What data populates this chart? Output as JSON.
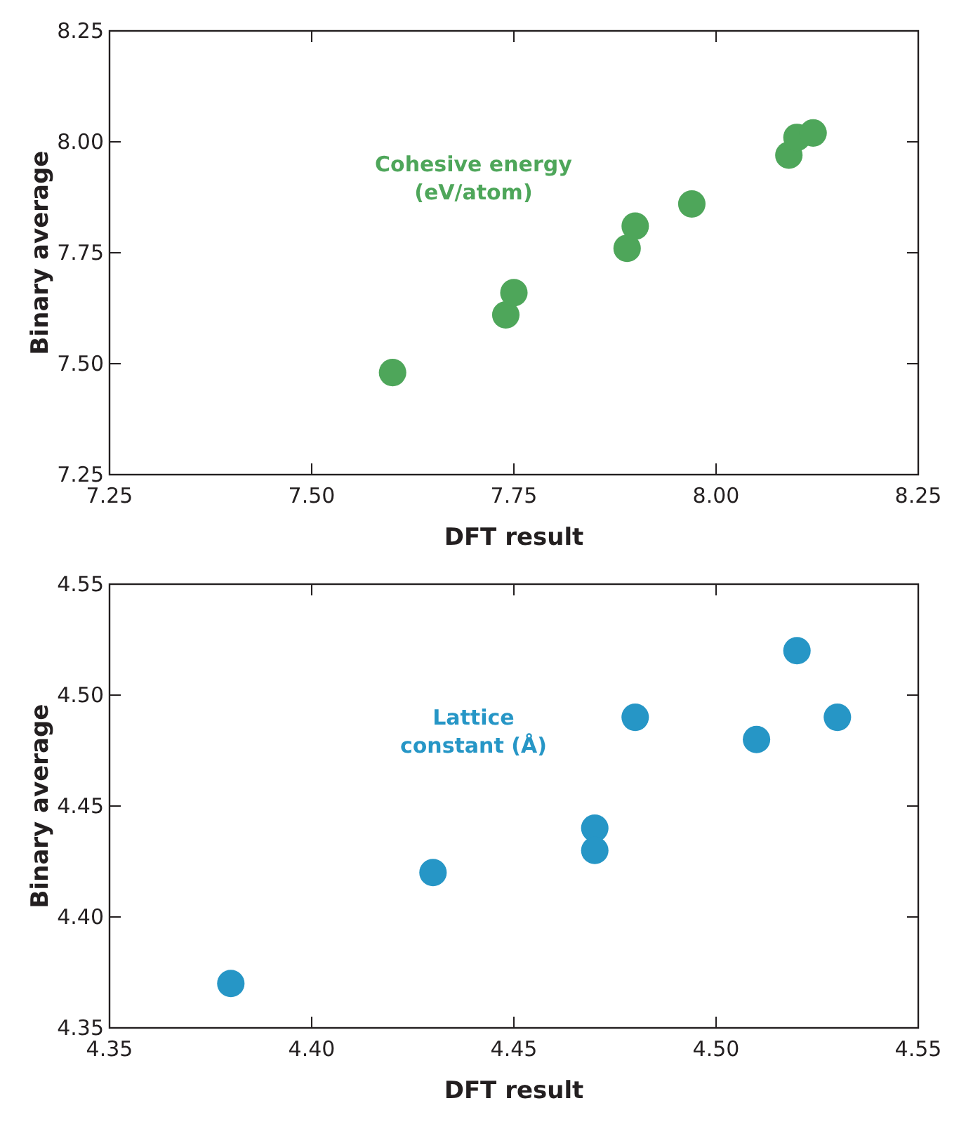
{
  "chart_data": [
    {
      "type": "scatter",
      "xlabel": "DFT result",
      "ylabel": "Binary average",
      "marker": "circle",
      "grid": false,
      "legend": false,
      "xlim": [
        7.25,
        8.25
      ],
      "ylim": [
        7.25,
        8.25
      ],
      "xticks": [
        {
          "value": 7.25,
          "label": "7.25"
        },
        {
          "value": 7.5,
          "label": "7.50"
        },
        {
          "value": 7.75,
          "label": "7.75"
        },
        {
          "value": 8,
          "label": "8.00"
        },
        {
          "value": 8.25,
          "label": "8.25"
        }
      ],
      "yticks": [
        {
          "value": 7.25,
          "label": "7.25"
        },
        {
          "value": 7.5,
          "label": "7.50"
        },
        {
          "value": 7.75,
          "label": "7.75"
        },
        {
          "value": 8,
          "label": "8.00"
        },
        {
          "value": 8.25,
          "label": "8.25"
        }
      ],
      "series": [
        {
          "name": "Cohesive energy (eV/atom)",
          "color": "#4ea65a",
          "x": [
            7.6,
            7.74,
            7.75,
            7.89,
            7.9,
            7.97,
            8.09,
            8.1,
            8.12
          ],
          "values": [
            7.48,
            7.61,
            7.66,
            7.76,
            7.81,
            7.86,
            7.97,
            8.01,
            8.02
          ]
        }
      ]
    },
    {
      "type": "scatter",
      "xlabel": "DFT result",
      "ylabel": "Binary average",
      "marker": "circle",
      "grid": false,
      "legend": false,
      "xlim": [
        4.35,
        4.55
      ],
      "ylim": [
        4.35,
        4.55
      ],
      "xticks": [
        {
          "value": 4.35,
          "label": "4.35"
        },
        {
          "value": 4.4,
          "label": "4.40"
        },
        {
          "value": 4.45,
          "label": "4.45"
        },
        {
          "value": 4.5,
          "label": "4.50"
        },
        {
          "value": 4.55,
          "label": "4.55"
        }
      ],
      "yticks": [
        {
          "value": 4.35,
          "label": "4.35"
        },
        {
          "value": 4.4,
          "label": "4.40"
        },
        {
          "value": 4.45,
          "label": "4.45"
        },
        {
          "value": 4.5,
          "label": "4.50"
        },
        {
          "value": 4.55,
          "label": "4.55"
        }
      ],
      "series": [
        {
          "name": "Lattice constant (Å)",
          "color": "#2696c6",
          "x": [
            4.38,
            4.43,
            4.47,
            4.47,
            4.48,
            4.51,
            4.52,
            4.53
          ],
          "values": [
            4.37,
            4.42,
            4.44,
            4.43,
            4.49,
            4.48,
            4.52,
            4.49
          ]
        }
      ]
    }
  ]
}
